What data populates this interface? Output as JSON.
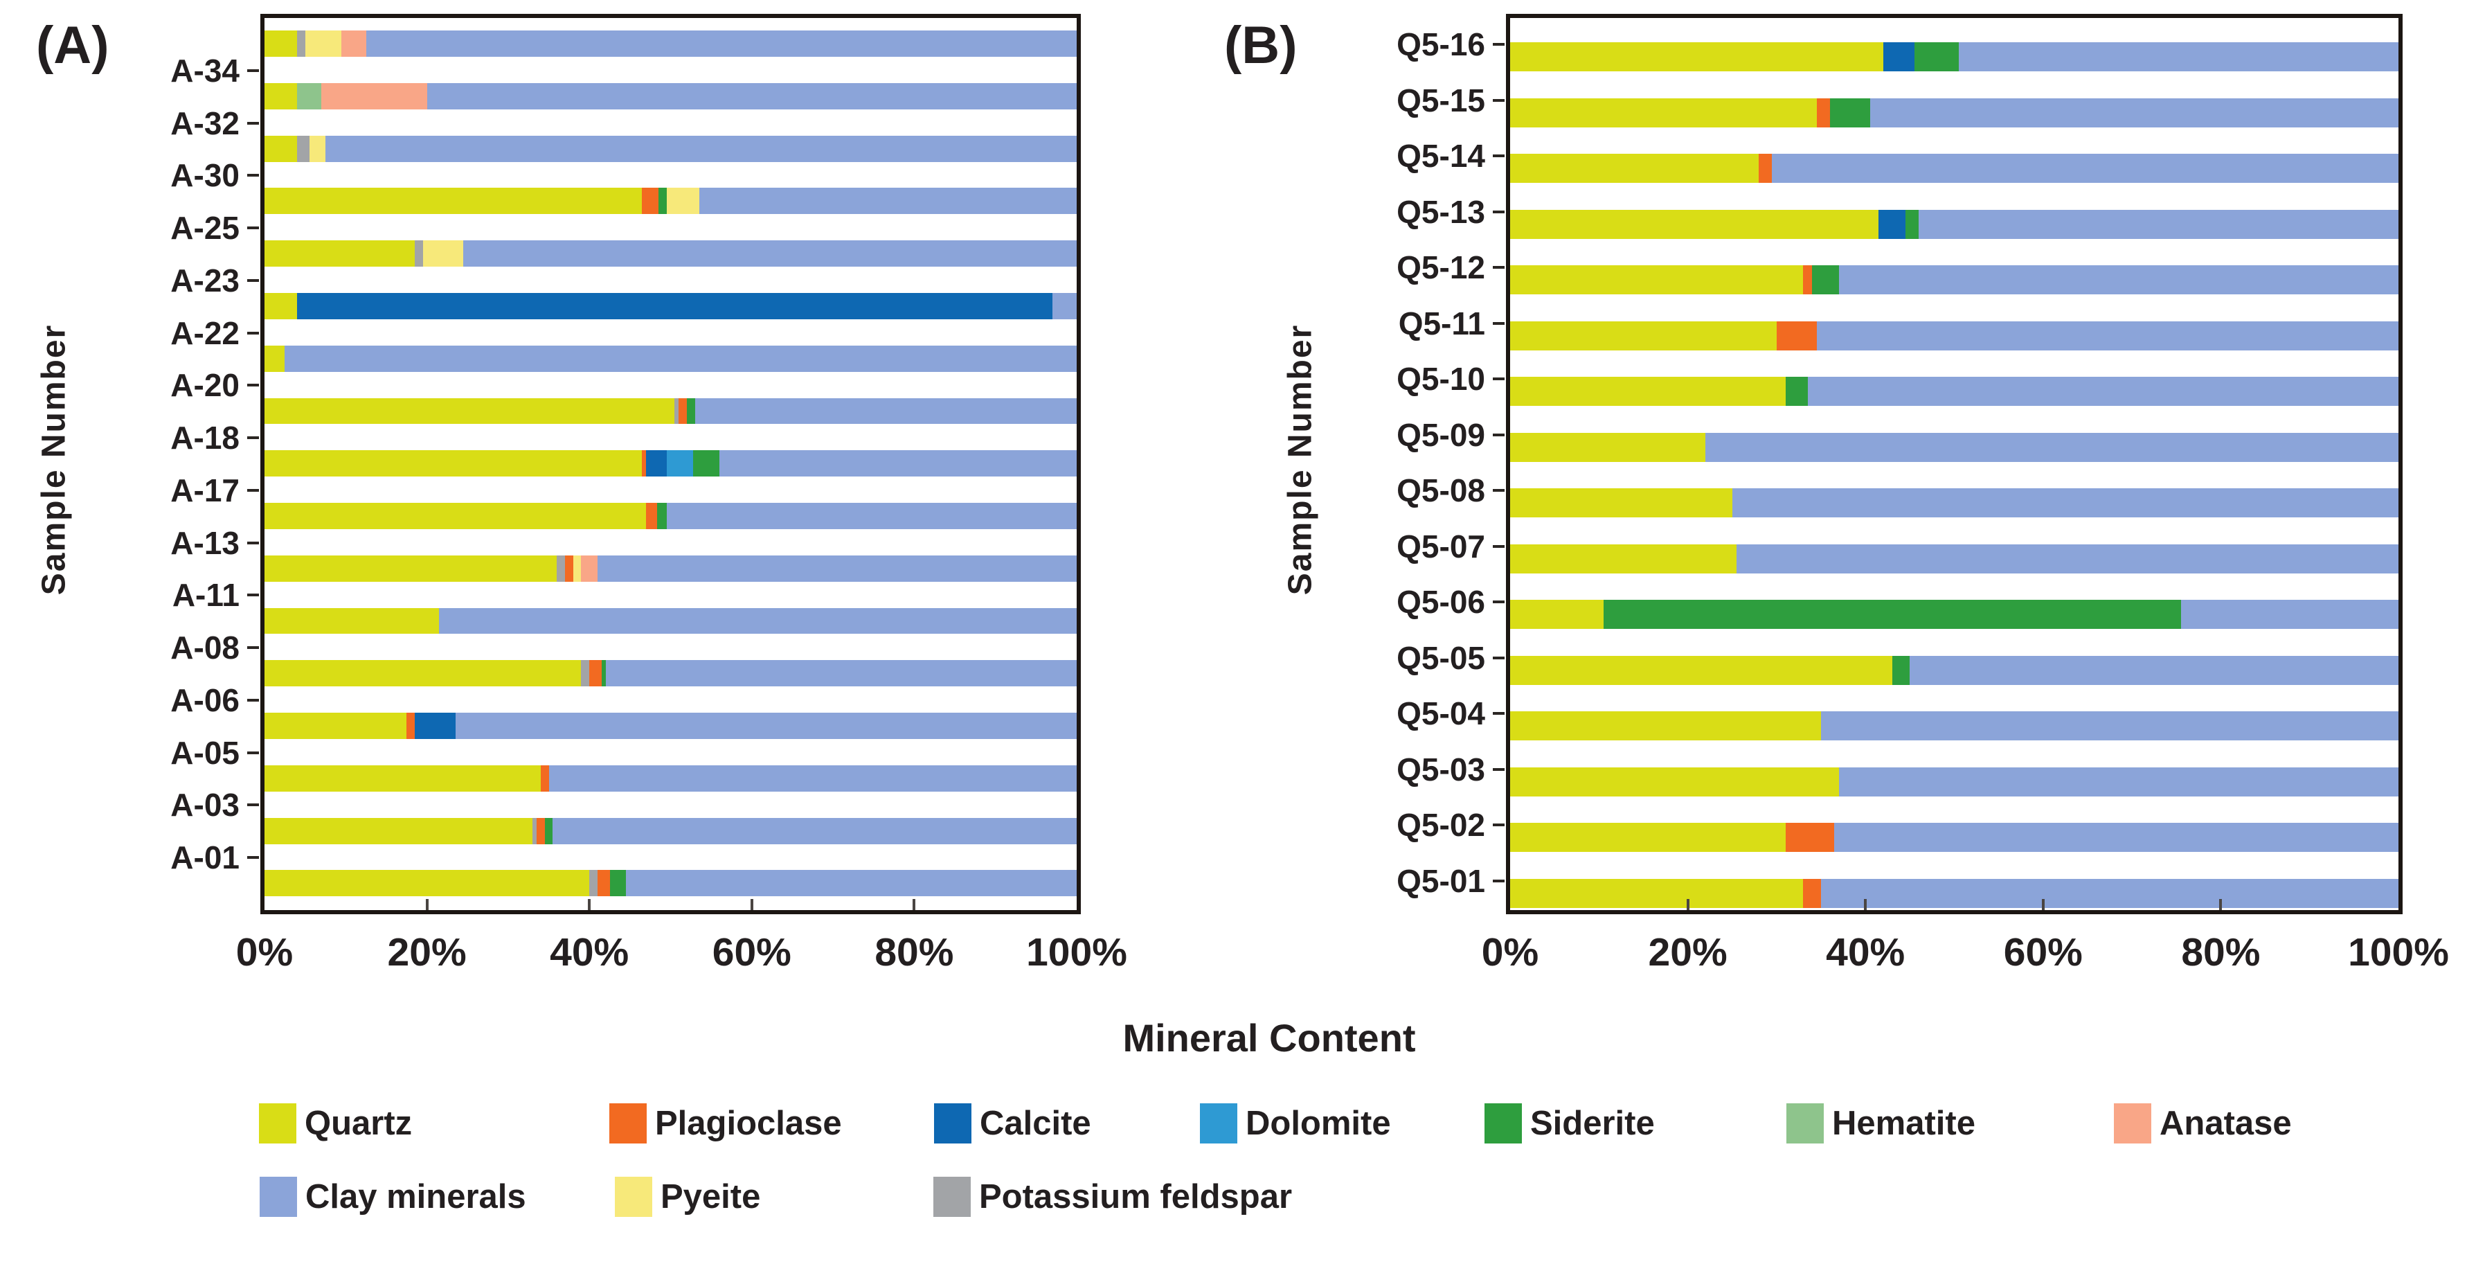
{
  "figure": {
    "panel_a_tag": "(A)",
    "panel_b_tag": "(B)",
    "y_axis_title": "Sample Number",
    "x_axis_title": "Mineral Content"
  },
  "colors": {
    "quartz": "#d9dd16",
    "plagioclase": "#f26a21",
    "calcite": "#0e68b2",
    "dolomite": "#2e9ad3",
    "siderite": "#2e9e3e",
    "hematite": "#8ec48c",
    "anatase": "#f9a687",
    "clay": "#8ba4d9",
    "pyeite": "#f7e97a",
    "k_feldspar": "#a2a4a7",
    "frame": "#1c1612",
    "text": "#231f20"
  },
  "legend": {
    "rows": [
      {
        "y": 1593,
        "items": [
          {
            "id": "quartz",
            "label": "Quartz",
            "x": 374
          },
          {
            "id": "plagioclase",
            "label": "Plagioclase",
            "x": 880
          },
          {
            "id": "calcite",
            "label": "Calcite",
            "x": 1349
          },
          {
            "id": "dolomite",
            "label": "Dolomite",
            "x": 1733
          },
          {
            "id": "siderite",
            "label": "Siderite",
            "x": 2144
          },
          {
            "id": "hematite",
            "label": "Hematite",
            "x": 2580
          },
          {
            "id": "anatase",
            "label": "Anatase",
            "x": 3053
          }
        ]
      },
      {
        "y": 1699,
        "items": [
          {
            "id": "clay",
            "label": "Clay minerals",
            "x": 375
          },
          {
            "id": "pyeite",
            "label": "Pyeite",
            "x": 888
          },
          {
            "id": "k_feldspar",
            "label": "Potassium feldspar",
            "x": 1348
          }
        ]
      }
    ]
  },
  "chart_data": [
    {
      "type": "bar",
      "variant": "horizontal-stacked-100pct",
      "panel": "A",
      "title": "(A)",
      "xlabel": "Mineral Content",
      "ylabel": "Sample Number",
      "xlim": [
        0,
        100
      ],
      "x_ticks": [
        "0%",
        "20%",
        "40%",
        "60%",
        "80%",
        "100%"
      ],
      "grid": false,
      "note": "17 stacked rows; 16 sample labels sit in the gaps between rows; bottom row unlabeled in source figure",
      "bars": [
        {
          "label": "A-34",
          "segments": [
            {
              "mineral": "quartz",
              "value": 4
            },
            {
              "mineral": "k_feldspar",
              "value": 1
            },
            {
              "mineral": "pyeite",
              "value": 4.5
            },
            {
              "mineral": "anatase",
              "value": 3
            },
            {
              "mineral": "clay",
              "value": 87.5
            }
          ]
        },
        {
          "label": "A-32",
          "segments": [
            {
              "mineral": "quartz",
              "value": 4
            },
            {
              "mineral": "hematite",
              "value": 3
            },
            {
              "mineral": "anatase",
              "value": 13
            },
            {
              "mineral": "clay",
              "value": 80
            }
          ]
        },
        {
          "label": "A-30",
          "segments": [
            {
              "mineral": "quartz",
              "value": 4
            },
            {
              "mineral": "k_feldspar",
              "value": 1.5
            },
            {
              "mineral": "pyeite",
              "value": 2
            },
            {
              "mineral": "clay",
              "value": 92.5
            }
          ]
        },
        {
          "label": "A-25",
          "segments": [
            {
              "mineral": "quartz",
              "value": 46.5
            },
            {
              "mineral": "plagioclase",
              "value": 2
            },
            {
              "mineral": "siderite",
              "value": 1
            },
            {
              "mineral": "pyeite",
              "value": 4
            },
            {
              "mineral": "clay",
              "value": 46.5
            }
          ]
        },
        {
          "label": "A-23",
          "segments": [
            {
              "mineral": "quartz",
              "value": 18.5
            },
            {
              "mineral": "k_feldspar",
              "value": 1
            },
            {
              "mineral": "pyeite",
              "value": 5
            },
            {
              "mineral": "clay",
              "value": 75.5
            }
          ]
        },
        {
          "label": "A-22",
          "segments": [
            {
              "mineral": "quartz",
              "value": 4
            },
            {
              "mineral": "calcite",
              "value": 93
            },
            {
              "mineral": "clay",
              "value": 3
            }
          ]
        },
        {
          "label": "A-20",
          "segments": [
            {
              "mineral": "quartz",
              "value": 2.5
            },
            {
              "mineral": "clay",
              "value": 97.5
            }
          ]
        },
        {
          "label": "A-18",
          "segments": [
            {
              "mineral": "quartz",
              "value": 50.5
            },
            {
              "mineral": "k_feldspar",
              "value": 0.5
            },
            {
              "mineral": "plagioclase",
              "value": 1
            },
            {
              "mineral": "siderite",
              "value": 1
            },
            {
              "mineral": "clay",
              "value": 47
            }
          ]
        },
        {
          "label": "A-17",
          "segments": [
            {
              "mineral": "quartz",
              "value": 46.5
            },
            {
              "mineral": "plagioclase",
              "value": 0.5
            },
            {
              "mineral": "calcite",
              "value": 2.5
            },
            {
              "mineral": "dolomite",
              "value": 3.25
            },
            {
              "mineral": "siderite",
              "value": 3.25
            },
            {
              "mineral": "clay",
              "value": 44
            }
          ]
        },
        {
          "label": "A-13",
          "segments": [
            {
              "mineral": "quartz",
              "value": 47
            },
            {
              "mineral": "plagioclase",
              "value": 1.3
            },
            {
              "mineral": "siderite",
              "value": 1.2
            },
            {
              "mineral": "clay",
              "value": 50.5
            }
          ]
        },
        {
          "label": "A-11",
          "segments": [
            {
              "mineral": "quartz",
              "value": 36
            },
            {
              "mineral": "k_feldspar",
              "value": 1
            },
            {
              "mineral": "plagioclase",
              "value": 1
            },
            {
              "mineral": "pyeite",
              "value": 1
            },
            {
              "mineral": "anatase",
              "value": 2
            },
            {
              "mineral": "clay",
              "value": 59
            }
          ]
        },
        {
          "label": "A-08",
          "segments": [
            {
              "mineral": "quartz",
              "value": 21.5
            },
            {
              "mineral": "clay",
              "value": 78.5
            }
          ]
        },
        {
          "label": "A-06",
          "segments": [
            {
              "mineral": "quartz",
              "value": 39
            },
            {
              "mineral": "k_feldspar",
              "value": 1
            },
            {
              "mineral": "plagioclase",
              "value": 1.5
            },
            {
              "mineral": "siderite",
              "value": 0.5
            },
            {
              "mineral": "clay",
              "value": 58
            }
          ]
        },
        {
          "label": "A-05",
          "segments": [
            {
              "mineral": "quartz",
              "value": 17.5
            },
            {
              "mineral": "plagioclase",
              "value": 1
            },
            {
              "mineral": "calcite",
              "value": 5
            },
            {
              "mineral": "clay",
              "value": 76.5
            }
          ]
        },
        {
          "label": "A-03",
          "segments": [
            {
              "mineral": "quartz",
              "value": 34
            },
            {
              "mineral": "plagioclase",
              "value": 1
            },
            {
              "mineral": "clay",
              "value": 65
            }
          ]
        },
        {
          "label": "A-01",
          "segments": [
            {
              "mineral": "quartz",
              "value": 33
            },
            {
              "mineral": "k_feldspar",
              "value": 0.5
            },
            {
              "mineral": "plagioclase",
              "value": 1
            },
            {
              "mineral": "siderite",
              "value": 1
            },
            {
              "mineral": "clay",
              "value": 64.5
            }
          ]
        },
        {
          "label": "",
          "segments": [
            {
              "mineral": "quartz",
              "value": 40
            },
            {
              "mineral": "k_feldspar",
              "value": 1
            },
            {
              "mineral": "plagioclase",
              "value": 1.5
            },
            {
              "mineral": "siderite",
              "value": 2
            },
            {
              "mineral": "clay",
              "value": 55.5
            }
          ]
        }
      ]
    },
    {
      "type": "bar",
      "variant": "horizontal-stacked-100pct",
      "panel": "B",
      "title": "(B)",
      "xlabel": "Mineral Content",
      "ylabel": "Sample Number",
      "xlim": [
        0,
        100
      ],
      "x_ticks": [
        "0%",
        "20%",
        "40%",
        "60%",
        "80%",
        "100%"
      ],
      "grid": false,
      "note": "16 stacked rows; labels sit just above each row",
      "bars": [
        {
          "label": "Q5-16",
          "segments": [
            {
              "mineral": "quartz",
              "value": 42
            },
            {
              "mineral": "calcite",
              "value": 3.5
            },
            {
              "mineral": "siderite",
              "value": 5
            },
            {
              "mineral": "clay",
              "value": 49.5
            }
          ]
        },
        {
          "label": "Q5-15",
          "segments": [
            {
              "mineral": "quartz",
              "value": 34.5
            },
            {
              "mineral": "plagioclase",
              "value": 1.5
            },
            {
              "mineral": "siderite",
              "value": 4.5
            },
            {
              "mineral": "clay",
              "value": 59.5
            }
          ]
        },
        {
          "label": "Q5-14",
          "segments": [
            {
              "mineral": "quartz",
              "value": 28
            },
            {
              "mineral": "plagioclase",
              "value": 1.5
            },
            {
              "mineral": "clay",
              "value": 70.5
            }
          ]
        },
        {
          "label": "Q5-13",
          "segments": [
            {
              "mineral": "quartz",
              "value": 41.5
            },
            {
              "mineral": "calcite",
              "value": 3
            },
            {
              "mineral": "siderite",
              "value": 1.5
            },
            {
              "mineral": "clay",
              "value": 54
            }
          ]
        },
        {
          "label": "Q5-12",
          "segments": [
            {
              "mineral": "quartz",
              "value": 33
            },
            {
              "mineral": "plagioclase",
              "value": 1
            },
            {
              "mineral": "siderite",
              "value": 3
            },
            {
              "mineral": "clay",
              "value": 63
            }
          ]
        },
        {
          "label": "Q5-11",
          "segments": [
            {
              "mineral": "quartz",
              "value": 30
            },
            {
              "mineral": "plagioclase",
              "value": 4.5
            },
            {
              "mineral": "clay",
              "value": 65.5
            }
          ]
        },
        {
          "label": "Q5-10",
          "segments": [
            {
              "mineral": "quartz",
              "value": 31
            },
            {
              "mineral": "siderite",
              "value": 2.5
            },
            {
              "mineral": "clay",
              "value": 66.5
            }
          ]
        },
        {
          "label": "Q5-09",
          "segments": [
            {
              "mineral": "quartz",
              "value": 22
            },
            {
              "mineral": "clay",
              "value": 78
            }
          ]
        },
        {
          "label": "Q5-08",
          "segments": [
            {
              "mineral": "quartz",
              "value": 25
            },
            {
              "mineral": "clay",
              "value": 75
            }
          ]
        },
        {
          "label": "Q5-07",
          "segments": [
            {
              "mineral": "quartz",
              "value": 25.5
            },
            {
              "mineral": "clay",
              "value": 74.5
            }
          ]
        },
        {
          "label": "Q5-06",
          "segments": [
            {
              "mineral": "quartz",
              "value": 10.5
            },
            {
              "mineral": "siderite",
              "value": 65
            },
            {
              "mineral": "clay",
              "value": 24.5
            }
          ]
        },
        {
          "label": "Q5-05",
          "segments": [
            {
              "mineral": "quartz",
              "value": 43
            },
            {
              "mineral": "siderite",
              "value": 2
            },
            {
              "mineral": "clay",
              "value": 55
            }
          ]
        },
        {
          "label": "Q5-04",
          "segments": [
            {
              "mineral": "quartz",
              "value": 35
            },
            {
              "mineral": "clay",
              "value": 65
            }
          ]
        },
        {
          "label": "Q5-03",
          "segments": [
            {
              "mineral": "quartz",
              "value": 37
            },
            {
              "mineral": "clay",
              "value": 63
            }
          ]
        },
        {
          "label": "Q5-02",
          "segments": [
            {
              "mineral": "quartz",
              "value": 31
            },
            {
              "mineral": "plagioclase",
              "value": 5.5
            },
            {
              "mineral": "clay",
              "value": 63.5
            }
          ]
        },
        {
          "label": "Q5-01",
          "segments": [
            {
              "mineral": "quartz",
              "value": 33
            },
            {
              "mineral": "plagioclase",
              "value": 2
            },
            {
              "mineral": "clay",
              "value": 65
            }
          ]
        }
      ]
    }
  ]
}
